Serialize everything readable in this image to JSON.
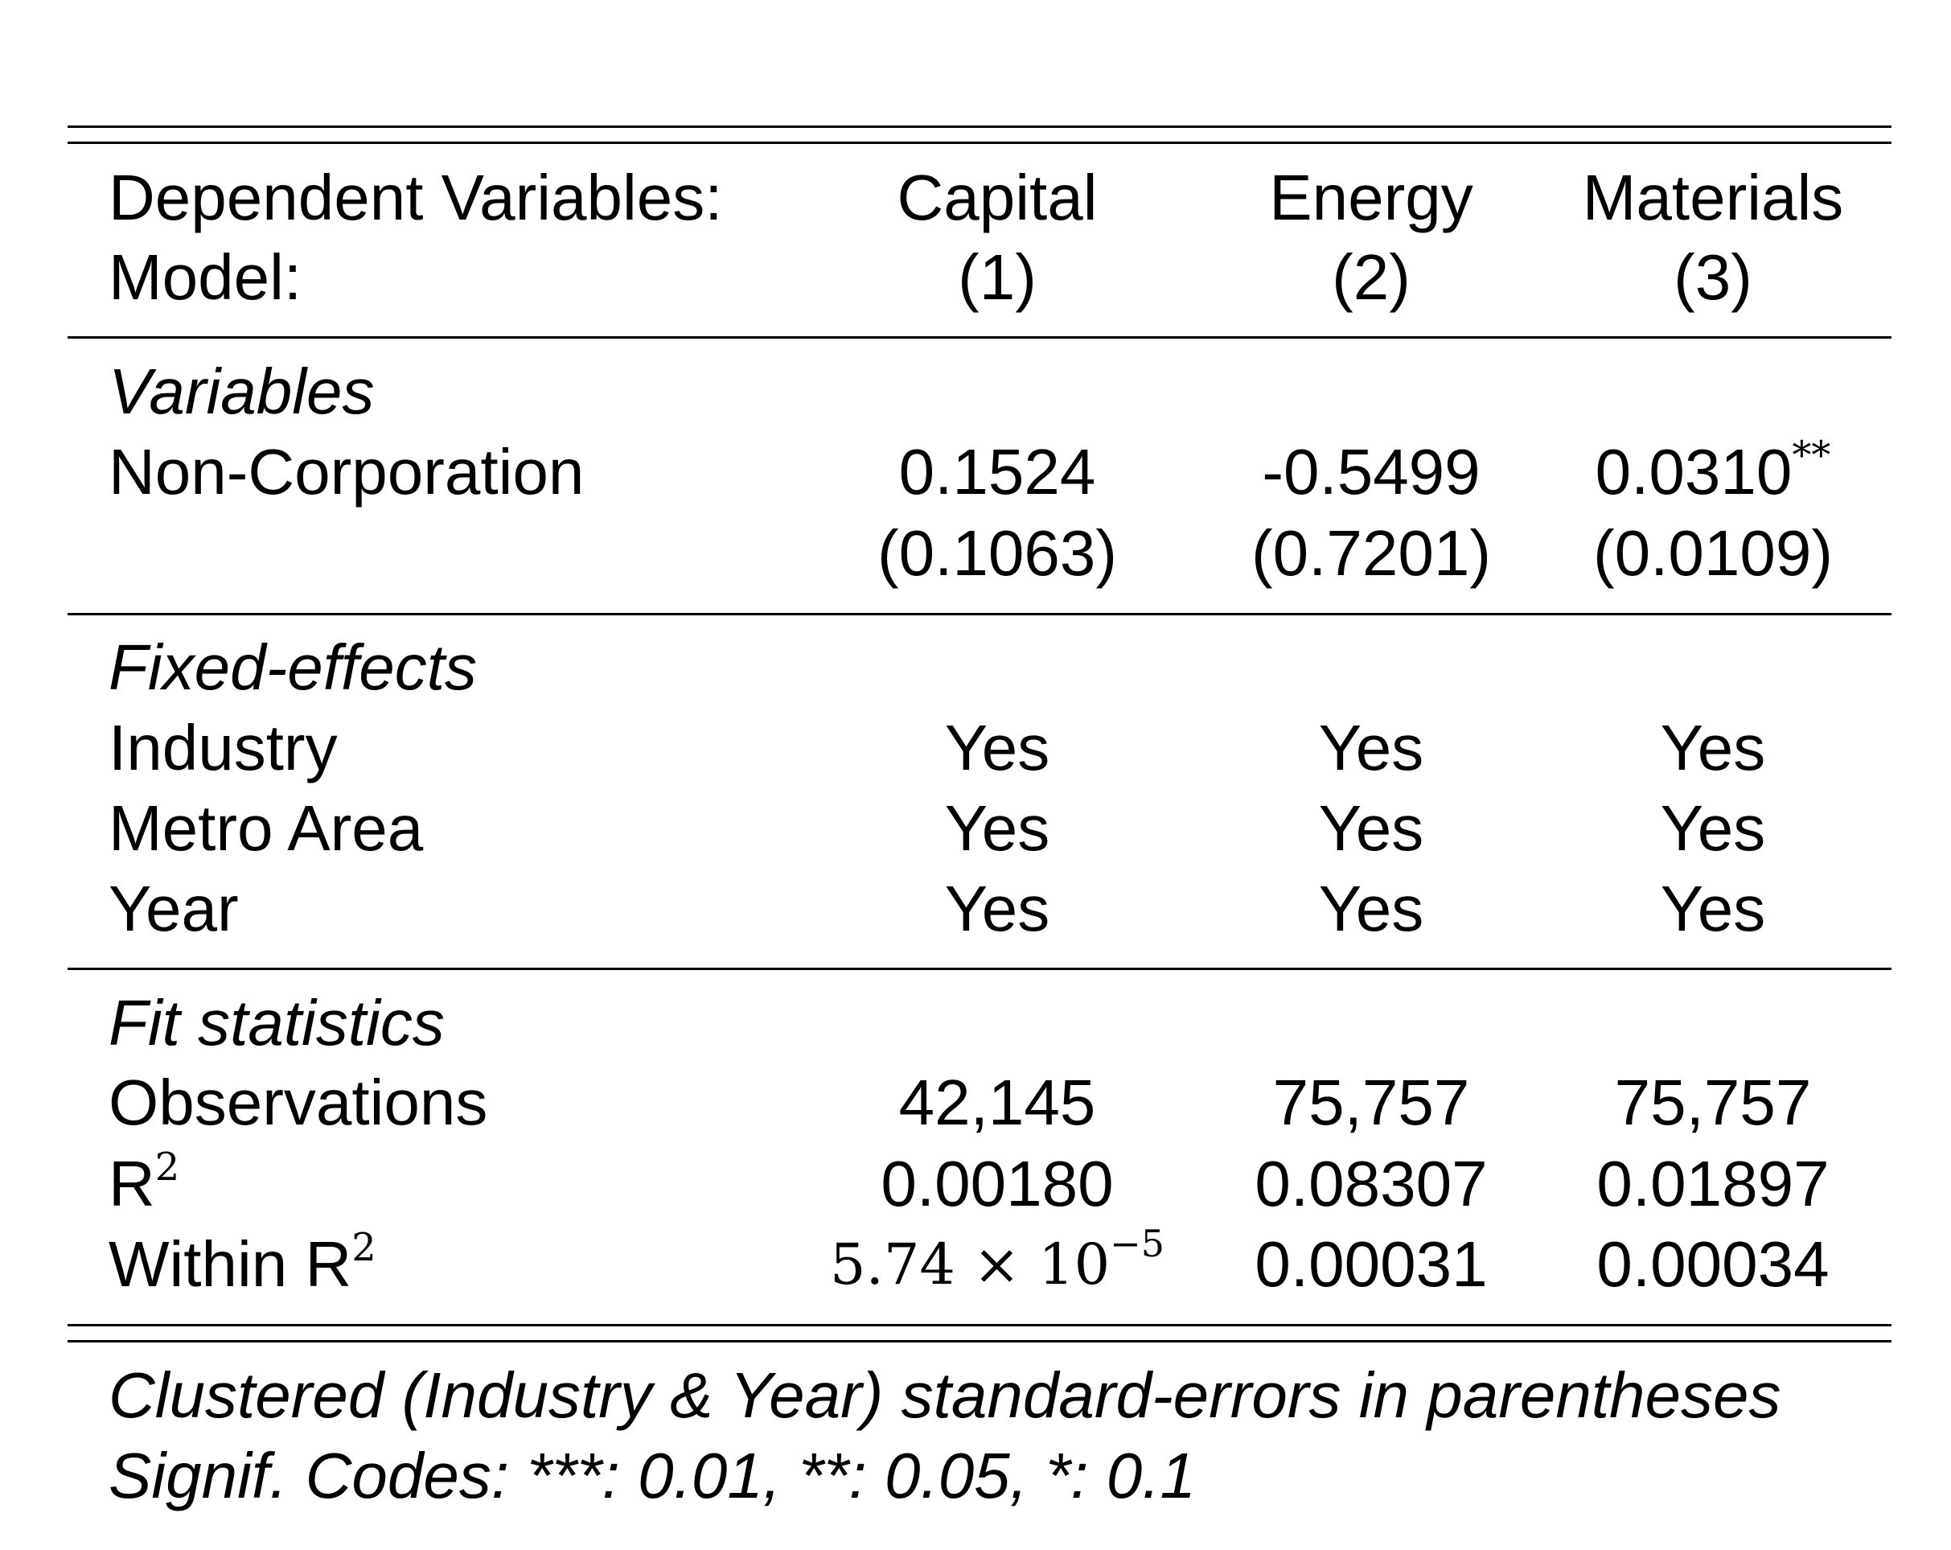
{
  "header": {
    "dep_label": "Dependent Variables:",
    "model_label": "Model:",
    "columns": [
      {
        "name": "Capital",
        "model": "(1)"
      },
      {
        "name": "Energy",
        "model": "(2)"
      },
      {
        "name": "Materials",
        "model": "(3)"
      }
    ]
  },
  "variables": {
    "section": "Variables",
    "rows": [
      {
        "label": "Non-Corporation",
        "coef": [
          "0.1524",
          "-0.5499",
          "0.0310"
        ],
        "stars": [
          "",
          "",
          "**"
        ],
        "se": [
          "(0.1063)",
          "(0.7201)",
          "(0.0109)"
        ]
      }
    ]
  },
  "fixed_effects": {
    "section": "Fixed-effects",
    "rows": [
      {
        "label": "Industry",
        "values": [
          "Yes",
          "Yes",
          "Yes"
        ]
      },
      {
        "label": "Metro Area",
        "values": [
          "Yes",
          "Yes",
          "Yes"
        ]
      },
      {
        "label": "Year",
        "values": [
          "Yes",
          "Yes",
          "Yes"
        ]
      }
    ]
  },
  "fit": {
    "section": "Fit statistics",
    "observations": {
      "label": "Observations",
      "values": [
        "42,145",
        "75,757",
        "75,757"
      ]
    },
    "r2": {
      "label": "R",
      "sup": "2",
      "values": [
        "0.00180",
        "0.08307",
        "0.01897"
      ]
    },
    "within_r2": {
      "label": "Within R",
      "sup": "2",
      "col1_mantissa": "5.74",
      "col1_times": "×",
      "col1_base": "10",
      "col1_exp": "−5",
      "values": [
        "",
        "0.00031",
        "0.00034"
      ]
    }
  },
  "notes": [
    "Clustered (Industry & Year) standard-errors in parentheses",
    "Signif. Codes: ***: 0.01, **: 0.05, *: 0.1"
  ]
}
